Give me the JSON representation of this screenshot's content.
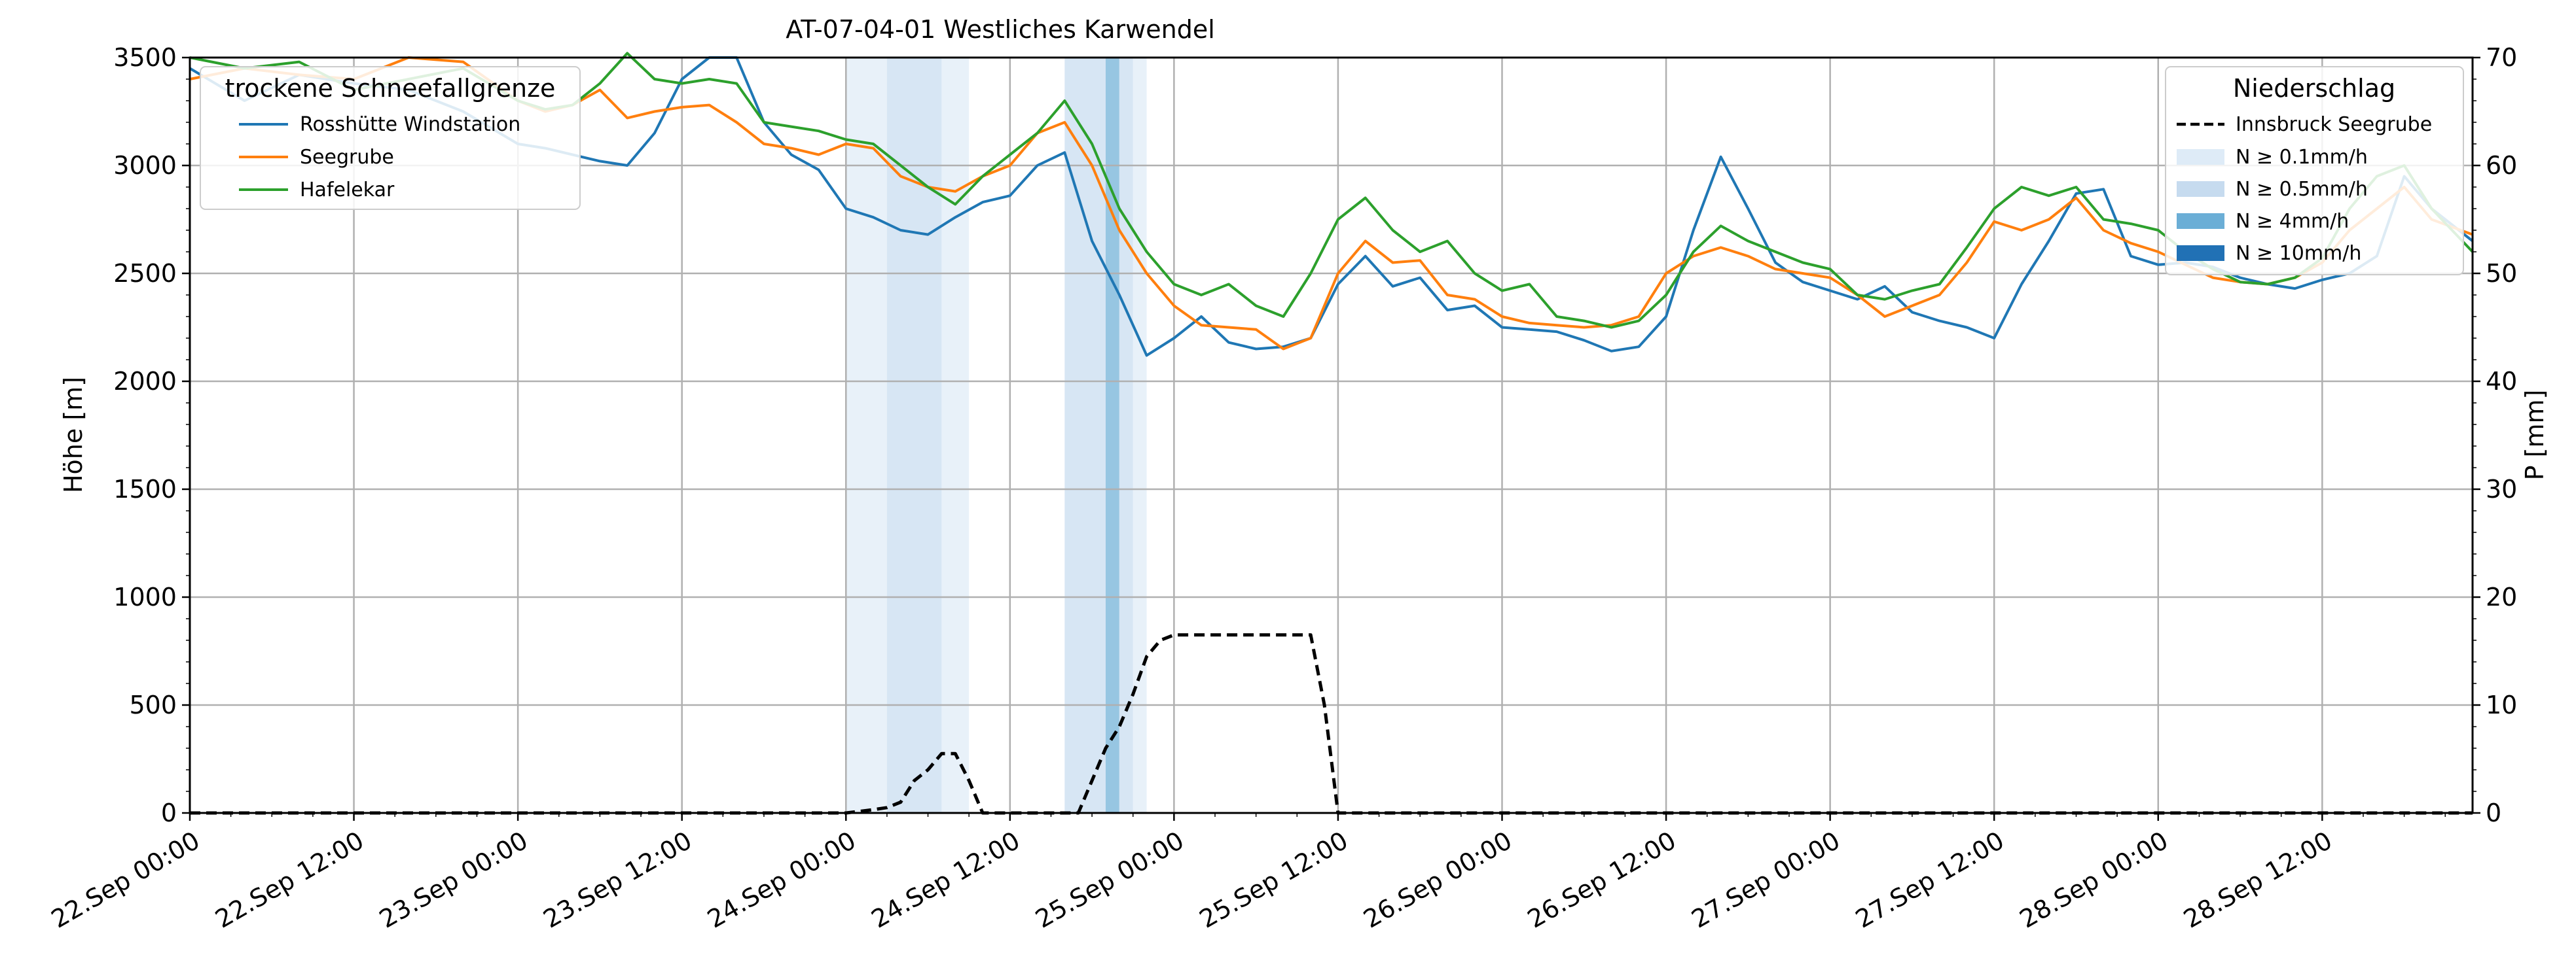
{
  "chart_data": {
    "type": "line",
    "title": "AT-07-04-01 Westliches Karwendel",
    "ylabel_left": "Höhe [m]",
    "ylabel_right": "P [mm]",
    "xlim_hours": [
      0,
      167
    ],
    "ylim_left": [
      0,
      3500
    ],
    "ylim_right": [
      0,
      70
    ],
    "grid": true,
    "x_ticks": [
      {
        "h": 0,
        "label": "22.Sep 00:00"
      },
      {
        "h": 12,
        "label": "22.Sep 12:00"
      },
      {
        "h": 24,
        "label": "23.Sep 00:00"
      },
      {
        "h": 36,
        "label": "23.Sep 12:00"
      },
      {
        "h": 48,
        "label": "24.Sep 00:00"
      },
      {
        "h": 60,
        "label": "24.Sep 12:00"
      },
      {
        "h": 72,
        "label": "25.Sep 00:00"
      },
      {
        "h": 84,
        "label": "25.Sep 12:00"
      },
      {
        "h": 96,
        "label": "26.Sep 00:00"
      },
      {
        "h": 108,
        "label": "26.Sep 12:00"
      },
      {
        "h": 120,
        "label": "27.Sep 00:00"
      },
      {
        "h": 132,
        "label": "27.Sep 12:00"
      },
      {
        "h": 144,
        "label": "28.Sep 00:00"
      },
      {
        "h": 156,
        "label": "28.Sep 12:00"
      }
    ],
    "y_ticks_left": [
      0,
      500,
      1000,
      1500,
      2000,
      2500,
      3000,
      3500
    ],
    "y_ticks_right": [
      0,
      10,
      20,
      30,
      40,
      50,
      60,
      70
    ],
    "legend_left": {
      "title": "trockene Schneefallgrenze",
      "placement": "upper-left"
    },
    "legend_right": {
      "title": "Niederschlag",
      "placement": "upper-right",
      "entries": [
        {
          "label": "Innsbruck Seegrube",
          "style": "dashed",
          "color": "#000000"
        },
        {
          "label": "N ≥ 0.1mm/h",
          "color": "#deebf7"
        },
        {
          "label": "N ≥ 0.5mm/h",
          "color": "#c6dbef"
        },
        {
          "label": "N ≥ 4mm/h",
          "color": "#6baed6"
        },
        {
          "label": "N ≥ 10mm/h",
          "color": "#2171b5"
        }
      ]
    },
    "series": [
      {
        "name": "Rosshütte Windstation",
        "color": "#1f77b4",
        "x": [
          0,
          4,
          8,
          12,
          16,
          20,
          24,
          26,
          28,
          30,
          32,
          34,
          36,
          38,
          40,
          42,
          44,
          46,
          48,
          50,
          52,
          54,
          56,
          58,
          60,
          62,
          64,
          66,
          68,
          70,
          72,
          74,
          76,
          78,
          80,
          82,
          84,
          86,
          88,
          90,
          92,
          94,
          96,
          98,
          100,
          102,
          104,
          106,
          108,
          110,
          112,
          114,
          116,
          118,
          120,
          122,
          124,
          126,
          128,
          130,
          132,
          134,
          136,
          138,
          140,
          142,
          144,
          146,
          148,
          150,
          152,
          154,
          156,
          158,
          160,
          162,
          164,
          167
        ],
        "y": [
          3450,
          3300,
          3420,
          3380,
          3350,
          3250,
          3100,
          3080,
          3050,
          3020,
          3000,
          3150,
          3400,
          3500,
          3500,
          3200,
          3050,
          2980,
          2800,
          2760,
          2700,
          2680,
          2760,
          2830,
          2860,
          3000,
          3060,
          2650,
          2400,
          2120,
          2200,
          2300,
          2180,
          2150,
          2160,
          2200,
          2450,
          2580,
          2440,
          2480,
          2330,
          2350,
          2250,
          2240,
          2230,
          2190,
          2140,
          2160,
          2300,
          2700,
          3040,
          2800,
          2550,
          2460,
          2420,
          2380,
          2440,
          2320,
          2280,
          2250,
          2200,
          2450,
          2650,
          2870,
          2890,
          2580,
          2540,
          2550,
          2530,
          2480,
          2450,
          2430,
          2470,
          2500,
          2580,
          2950,
          2800,
          2650
        ]
      },
      {
        "name": "Seegrube",
        "color": "#ff7f0e",
        "x": [
          0,
          4,
          8,
          12,
          16,
          20,
          24,
          26,
          28,
          30,
          32,
          34,
          36,
          38,
          40,
          42,
          44,
          46,
          48,
          50,
          52,
          54,
          56,
          58,
          60,
          62,
          64,
          66,
          68,
          70,
          72,
          74,
          76,
          78,
          80,
          82,
          84,
          86,
          88,
          90,
          92,
          94,
          96,
          98,
          100,
          102,
          104,
          106,
          108,
          110,
          112,
          114,
          116,
          118,
          120,
          122,
          124,
          126,
          128,
          130,
          132,
          134,
          136,
          138,
          140,
          142,
          144,
          146,
          148,
          150,
          152,
          154,
          156,
          158,
          160,
          162,
          164,
          167
        ],
        "y": [
          3400,
          3450,
          3420,
          3400,
          3500,
          3480,
          3300,
          3250,
          3280,
          3350,
          3220,
          3250,
          3270,
          3280,
          3200,
          3100,
          3080,
          3050,
          3100,
          3080,
          2950,
          2900,
          2880,
          2950,
          3000,
          3150,
          3200,
          3000,
          2700,
          2500,
          2350,
          2260,
          2250,
          2240,
          2150,
          2200,
          2500,
          2650,
          2550,
          2560,
          2400,
          2380,
          2300,
          2270,
          2260,
          2250,
          2260,
          2300,
          2500,
          2580,
          2620,
          2580,
          2520,
          2500,
          2480,
          2400,
          2300,
          2350,
          2400,
          2550,
          2740,
          2700,
          2750,
          2850,
          2700,
          2640,
          2600,
          2540,
          2480,
          2460,
          2450,
          2480,
          2550,
          2700,
          2800,
          2900,
          2750,
          2680
        ]
      },
      {
        "name": "Hafelekar",
        "color": "#2ca02c",
        "x": [
          0,
          4,
          8,
          12,
          16,
          20,
          24,
          26,
          28,
          30,
          32,
          34,
          36,
          38,
          40,
          42,
          44,
          46,
          48,
          50,
          52,
          54,
          56,
          58,
          60,
          62,
          64,
          66,
          68,
          70,
          72,
          74,
          76,
          78,
          80,
          82,
          84,
          86,
          88,
          90,
          92,
          94,
          96,
          98,
          100,
          102,
          104,
          106,
          108,
          110,
          112,
          114,
          116,
          118,
          120,
          122,
          124,
          126,
          128,
          130,
          132,
          134,
          136,
          138,
          140,
          142,
          144,
          146,
          148,
          150,
          152,
          154,
          156,
          158,
          160,
          162,
          164,
          167
        ],
        "y": [
          3500,
          3450,
          3480,
          3350,
          3400,
          3450,
          3300,
          3260,
          3280,
          3380,
          3520,
          3400,
          3380,
          3400,
          3380,
          3200,
          3180,
          3160,
          3120,
          3100,
          3000,
          2900,
          2820,
          2950,
          3050,
          3150,
          3300,
          3100,
          2800,
          2600,
          2450,
          2400,
          2450,
          2350,
          2300,
          2500,
          2750,
          2850,
          2700,
          2600,
          2650,
          2500,
          2420,
          2450,
          2300,
          2280,
          2250,
          2280,
          2400,
          2600,
          2720,
          2650,
          2600,
          2550,
          2520,
          2400,
          2380,
          2420,
          2450,
          2620,
          2800,
          2900,
          2860,
          2900,
          2750,
          2730,
          2700,
          2600,
          2520,
          2460,
          2450,
          2480,
          2570,
          2800,
          2950,
          3000,
          2800,
          2600
        ]
      },
      {
        "name": "Innsbruck Seegrube",
        "axis": "right",
        "color": "#000000",
        "dashed": true,
        "x": [
          0,
          48,
          50,
          51,
          52,
          53,
          54,
          55,
          56,
          57,
          58,
          64,
          65,
          66,
          67,
          68,
          69,
          70,
          71,
          72,
          75,
          78,
          80,
          82,
          83,
          84,
          167
        ],
        "y": [
          0,
          0,
          0.3,
          0.5,
          1.0,
          3.0,
          4.0,
          5.5,
          5.5,
          3.0,
          0,
          0,
          0,
          3.0,
          6.0,
          8.0,
          11.0,
          14.5,
          16.0,
          16.5,
          16.5,
          16.5,
          16.5,
          16.5,
          10.0,
          0,
          0
        ]
      }
    ],
    "precip_bands": [
      {
        "start": 48,
        "end": 51,
        "level": 1
      },
      {
        "start": 51,
        "end": 54,
        "level": 2
      },
      {
        "start": 54,
        "end": 55,
        "level": 2
      },
      {
        "start": 55,
        "end": 57,
        "level": 1
      },
      {
        "start": 64,
        "end": 67,
        "level": 2
      },
      {
        "start": 67,
        "end": 68,
        "level": 3
      },
      {
        "start": 68,
        "end": 69,
        "level": 2
      },
      {
        "start": 69,
        "end": 70,
        "level": 1
      }
    ]
  }
}
